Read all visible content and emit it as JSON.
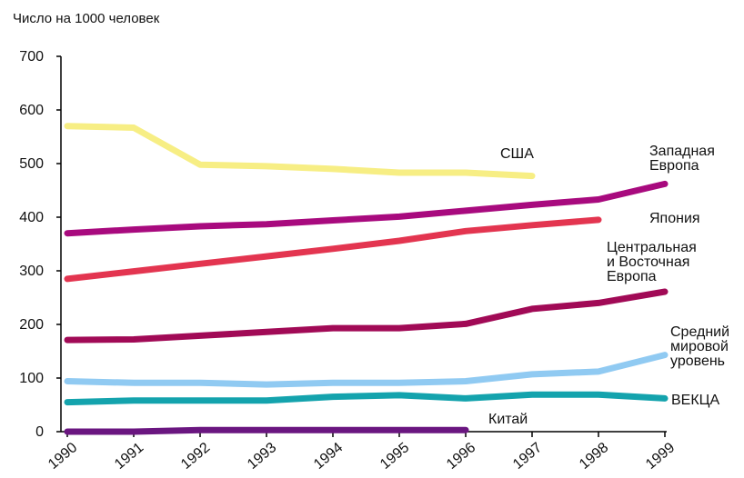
{
  "chart_data": {
    "type": "line",
    "title": "",
    "ylabel": "Число на 1000 человек",
    "xlabel": "",
    "ylim": [
      0,
      700
    ],
    "yticks": [
      "0",
      "100",
      "200",
      "300",
      "400",
      "500",
      "600",
      "700"
    ],
    "x": [
      "1990",
      "1991",
      "1992",
      "1993",
      "1994",
      "1995",
      "1996",
      "1997",
      "1998",
      "1999"
    ],
    "grid": false,
    "legend": "none",
    "series": [
      {
        "name": "США",
        "color": "#f7ee84",
        "values": [
          570,
          567,
          498,
          495,
          490,
          483,
          483,
          477,
          null,
          null
        ]
      },
      {
        "name": "Западная Европа",
        "color": "#a80a7e",
        "values": [
          370,
          377,
          383,
          387,
          394,
          401,
          412,
          423,
          433,
          462
        ]
      },
      {
        "name": "Япония",
        "color": "#e33550",
        "values": [
          285,
          299,
          313,
          327,
          341,
          356,
          374,
          385,
          395,
          null
        ]
      },
      {
        "name": "Центральная и Восточная Европа",
        "color": "#a10a56",
        "values": [
          171,
          172,
          179,
          186,
          193,
          193,
          201,
          229,
          240,
          261
        ]
      },
      {
        "name": "Средний мировой уровень",
        "color": "#90caf2",
        "values": [
          94,
          91,
          91,
          88,
          91,
          91,
          94,
          107,
          112,
          143
        ]
      },
      {
        "name": "ВЕКЦА",
        "color": "#14a3ad",
        "values": [
          55,
          58,
          58,
          58,
          65,
          68,
          62,
          69,
          69,
          62
        ]
      },
      {
        "name": "Китай",
        "color": "#6a1680",
        "values": [
          0,
          0,
          3,
          3,
          3,
          3,
          3,
          null,
          null,
          null
        ]
      }
    ],
    "labels": [
      {
        "lines": [
          "США"
        ]
      },
      {
        "lines": [
          "Западная",
          "Европа"
        ]
      },
      {
        "lines": [
          "Япония"
        ]
      },
      {
        "lines": [
          "Центральная",
          "и Восточная",
          "Европа"
        ]
      },
      {
        "lines": [
          "Средний",
          "мировой",
          "уровень"
        ]
      },
      {
        "lines": [
          "ВЕКЦА"
        ]
      },
      {
        "lines": [
          "Китай"
        ]
      }
    ]
  }
}
